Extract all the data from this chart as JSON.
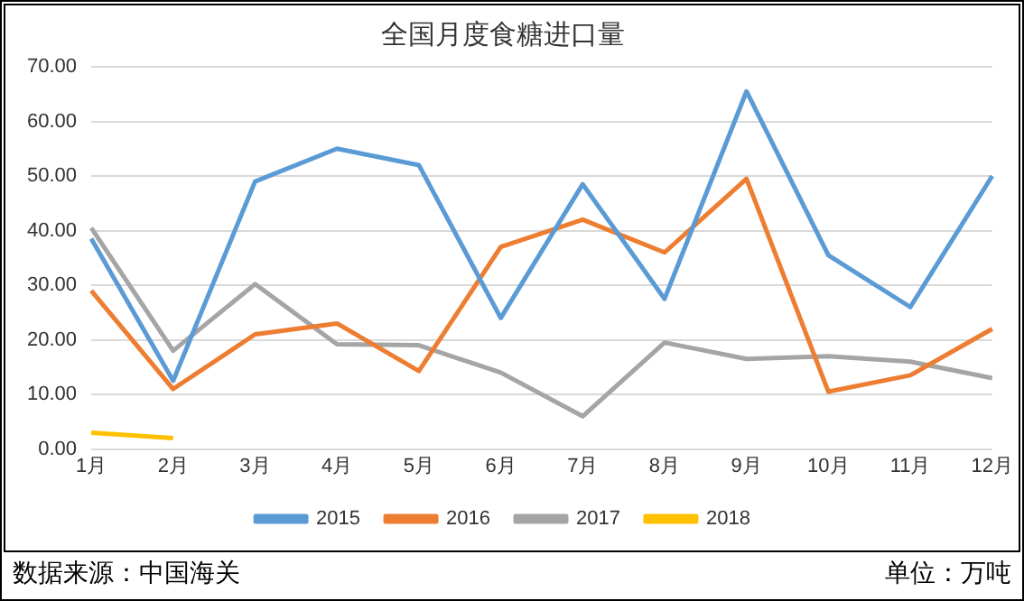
{
  "chart_data": {
    "type": "line",
    "title": "全国月度食糖进口量",
    "categories": [
      "1月",
      "2月",
      "3月",
      "4月",
      "5月",
      "6月",
      "7月",
      "8月",
      "9月",
      "10月",
      "11月",
      "12月"
    ],
    "series": [
      {
        "name": "2015",
        "color": "#5b9bd5",
        "values": [
          38.5,
          12.5,
          49,
          55,
          52,
          24,
          48.5,
          27.5,
          65.5,
          35.5,
          26,
          50
        ]
      },
      {
        "name": "2016",
        "color": "#ed7d31",
        "values": [
          29,
          11,
          21,
          23,
          14.3,
          37,
          42,
          36,
          49.5,
          10.5,
          13.5,
          22
        ]
      },
      {
        "name": "2017",
        "color": "#a5a5a5",
        "values": [
          40.5,
          18,
          30.2,
          19.2,
          19,
          14,
          6,
          19.5,
          16.5,
          17,
          16,
          13
        ]
      },
      {
        "name": "2018",
        "color": "#ffc000",
        "values": [
          3,
          2,
          null,
          null,
          null,
          null,
          null,
          null,
          null,
          null,
          null,
          null
        ]
      }
    ],
    "ylim": [
      0,
      70
    ],
    "yticks": [
      {
        "value": 0,
        "label": "0.00"
      },
      {
        "value": 10,
        "label": "10.00"
      },
      {
        "value": 20,
        "label": "20.00"
      },
      {
        "value": 30,
        "label": "30.00"
      },
      {
        "value": 40,
        "label": "40.00"
      },
      {
        "value": 50,
        "label": "50.00"
      },
      {
        "value": 60,
        "label": "60.00"
      },
      {
        "value": 70,
        "label": "70.00"
      }
    ],
    "grid": "y",
    "legend": "bottom",
    "marker": "none",
    "line_style": "solid",
    "annotations": [
      "数据来源：中国海关",
      "单位：万吨"
    ]
  }
}
